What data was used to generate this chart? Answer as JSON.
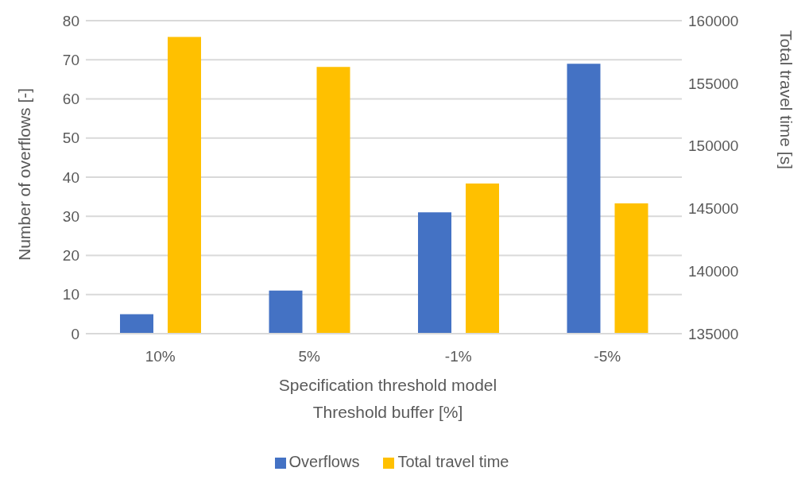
{
  "chart_data": {
    "type": "bar",
    "xlabel": "Specification threshold model\nThreshold buffer [%]",
    "ylabel": "Number of overflows [-]",
    "y2label": "Total travel time [s]",
    "categories": [
      "10%",
      "5%",
      "-1%",
      "-5%"
    ],
    "series": [
      {
        "name": "Overflows",
        "color": "#4472c4",
        "values": [
          5,
          11,
          31,
          69
        ]
      },
      {
        "name": "Total travel time",
        "color": "#ffc000",
        "axis": "y2",
        "values": [
          158700,
          156300,
          147000,
          145400
        ]
      }
    ],
    "ylim": [
      0,
      80
    ],
    "yticks": [
      0,
      10,
      20,
      30,
      40,
      50,
      60,
      70,
      80
    ],
    "y2lim": [
      135000,
      160000
    ],
    "y2ticks": [
      135000,
      140000,
      145000,
      150000,
      155000,
      160000
    ],
    "grid": "y",
    "legend": "bottom"
  }
}
